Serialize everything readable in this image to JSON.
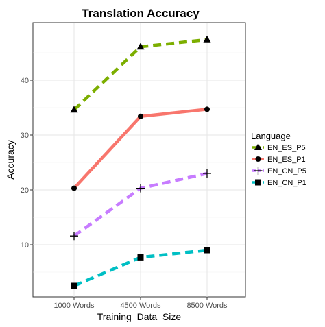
{
  "chart_data": {
    "type": "line",
    "title": "Translation Accuracy",
    "xlabel": "Training_Data_Size",
    "ylabel": "Accuracy",
    "categories": [
      "1000 Words",
      "4500 Words",
      "8500 Words"
    ],
    "ylim": [
      0.5,
      50.5
    ],
    "yticks": [
      10,
      20,
      30,
      40
    ],
    "grid": true,
    "legend_title": "Language",
    "legend_position": "right",
    "series": [
      {
        "name": "EN_ES_P5",
        "values": [
          34.6,
          46.1,
          47.4
        ],
        "color": "#7cae00",
        "dash": "dashed",
        "marker": "triangle"
      },
      {
        "name": "EN_ES_P1",
        "values": [
          20.3,
          33.4,
          34.7
        ],
        "color": "#f8766d",
        "dash": "solid",
        "marker": "circle"
      },
      {
        "name": "EN_CN_P5",
        "values": [
          11.6,
          20.3,
          23.0
        ],
        "color": "#c77cff",
        "dash": "dashed",
        "marker": "plus"
      },
      {
        "name": "EN_CN_P1",
        "values": [
          2.5,
          7.7,
          9.0
        ],
        "color": "#00bfc4",
        "dash": "dashed",
        "marker": "square"
      }
    ]
  }
}
